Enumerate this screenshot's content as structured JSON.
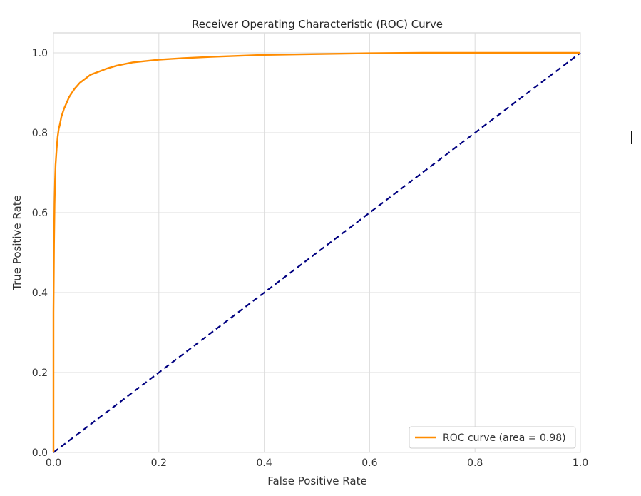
{
  "chart_data": {
    "type": "line",
    "title": "Receiver Operating Characteristic (ROC) Curve",
    "xlabel": "False Positive Rate",
    "ylabel": "True Positive Rate",
    "xlim": [
      0.0,
      1.0
    ],
    "ylim": [
      0.0,
      1.05
    ],
    "xticks": [
      0.0,
      0.2,
      0.4,
      0.6,
      0.8,
      1.0
    ],
    "yticks": [
      0.0,
      0.2,
      0.4,
      0.6,
      0.8,
      1.0
    ],
    "xtick_labels": [
      "0.0",
      "0.2",
      "0.4",
      "0.6",
      "0.8",
      "1.0"
    ],
    "ytick_labels": [
      "0.0",
      "0.2",
      "0.4",
      "0.6",
      "0.8",
      "1.0"
    ],
    "grid": true,
    "legend": {
      "position": "lower-right",
      "entries": [
        "ROC curve (area = 0.98)"
      ]
    },
    "series": [
      {
        "name": "ROC curve (area = 0.98)",
        "color": "#ff8c00",
        "line_style": "solid",
        "x": [
          0.0,
          0.0,
          0.001,
          0.002,
          0.003,
          0.004,
          0.006,
          0.008,
          0.01,
          0.012,
          0.015,
          0.02,
          0.025,
          0.03,
          0.04,
          0.05,
          0.06,
          0.07,
          0.08,
          0.09,
          0.1,
          0.12,
          0.15,
          0.2,
          0.25,
          0.3,
          0.4,
          0.5,
          0.6,
          0.7,
          0.8,
          0.9,
          1.0
        ],
        "y": [
          0.0,
          0.35,
          0.52,
          0.62,
          0.68,
          0.72,
          0.76,
          0.79,
          0.81,
          0.82,
          0.84,
          0.86,
          0.875,
          0.89,
          0.91,
          0.925,
          0.935,
          0.945,
          0.95,
          0.955,
          0.96,
          0.968,
          0.976,
          0.983,
          0.987,
          0.99,
          0.995,
          0.997,
          0.999,
          1.0,
          1.0,
          1.0,
          1.0
        ]
      },
      {
        "color": "#000080",
        "line_style": "dashed",
        "x": [
          0.0,
          1.0
        ],
        "y": [
          0.0,
          1.0
        ]
      }
    ]
  }
}
